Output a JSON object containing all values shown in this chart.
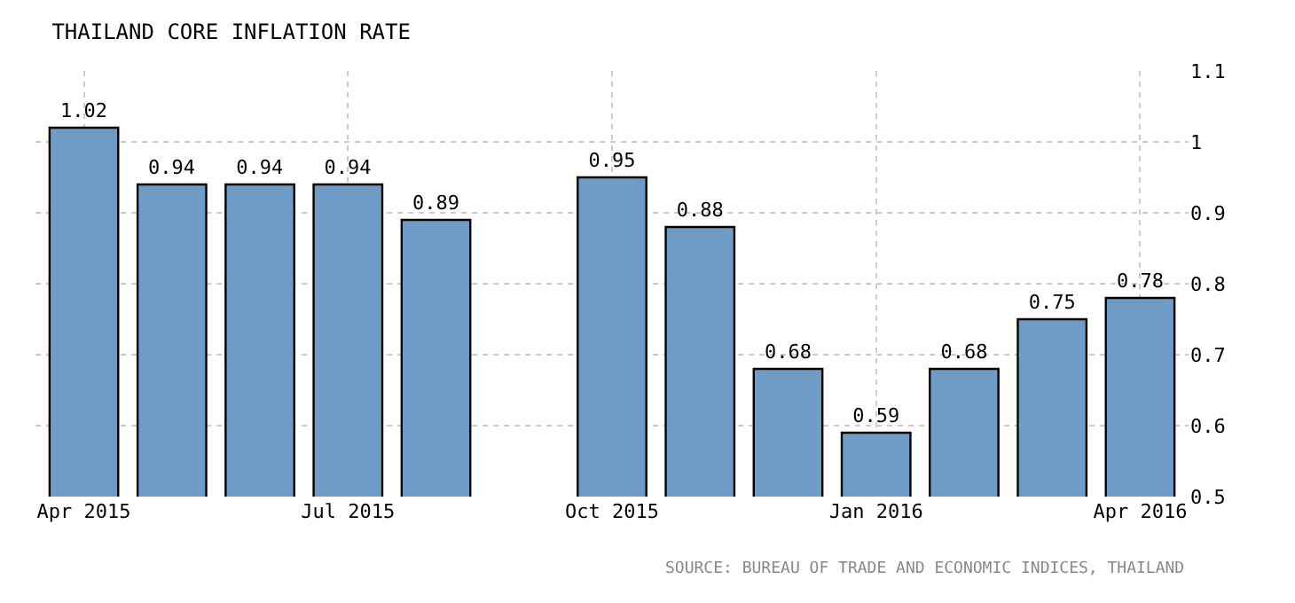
{
  "chart_data": {
    "type": "bar",
    "title": "THAILAND CORE INFLATION RATE",
    "categories": [
      "Apr 2015",
      null,
      null,
      "Jul 2015",
      null,
      null,
      "Oct 2015",
      null,
      null,
      "Jan 2016",
      null,
      null,
      "Apr 2016"
    ],
    "values": [
      1.02,
      0.94,
      0.94,
      0.94,
      0.89,
      null,
      0.95,
      0.88,
      0.68,
      0.59,
      0.68,
      0.75,
      0.78
    ],
    "color": "#6f9cc7",
    "ylim": [
      0.5,
      1.1
    ],
    "yticks": [
      0.5,
      0.6,
      0.7,
      0.8,
      0.9,
      1,
      1.1
    ],
    "grid": true,
    "data_labels": true,
    "annotations": [
      "SOURCE: BUREAU OF TRADE AND ECONOMIC INDICES, THAILAND"
    ]
  }
}
